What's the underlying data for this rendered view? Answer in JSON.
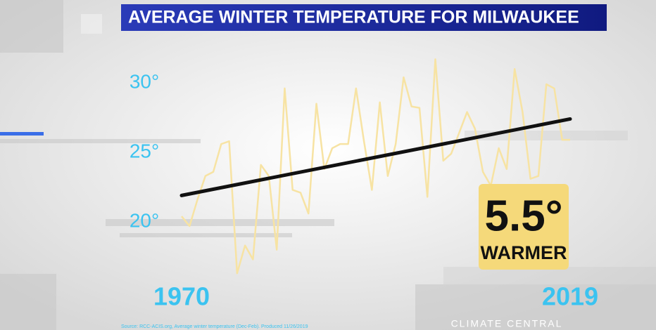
{
  "chart_data": {
    "type": "line",
    "title": "AVERAGE WINTER TEMPERATURE FOR MILWAUKEE",
    "x": [
      1970,
      1971,
      1972,
      1973,
      1974,
      1975,
      1976,
      1977,
      1978,
      1979,
      1980,
      1981,
      1982,
      1983,
      1984,
      1985,
      1986,
      1987,
      1988,
      1989,
      1990,
      1991,
      1992,
      1993,
      1994,
      1995,
      1996,
      1997,
      1998,
      1999,
      2000,
      2001,
      2002,
      2003,
      2004,
      2005,
      2006,
      2007,
      2008,
      2009,
      2010,
      2011,
      2012,
      2013,
      2014,
      2015,
      2016,
      2017,
      2018,
      2019
    ],
    "series": [
      {
        "name": "Average winter temperature",
        "color": "#f7e3a3",
        "values": [
          20.4,
          19.7,
          21.6,
          23.3,
          23.6,
          25.6,
          25.8,
          16.3,
          18.3,
          17.3,
          24.1,
          23.3,
          18.0,
          29.6,
          22.3,
          22.1,
          20.6,
          28.5,
          23.8,
          25.3,
          25.6,
          25.6,
          29.6,
          25.8,
          22.3,
          28.6,
          23.3,
          25.6,
          30.4,
          28.3,
          28.2,
          21.8,
          31.7,
          24.4,
          24.9,
          26.4,
          27.9,
          26.7,
          23.6,
          22.6,
          25.3,
          23.8,
          31.0,
          27.9,
          23.1,
          23.3,
          29.9,
          29.6,
          25.9,
          25.9
        ]
      }
    ],
    "trend": {
      "color": "#111111",
      "values": [
        21.9,
        27.4
      ]
    },
    "xlim": [
      1970,
      2019
    ],
    "xticks": [
      1970,
      2019
    ],
    "ylim": [
      15,
      33
    ],
    "yticks": [
      {
        "value": 30,
        "label": "30°"
      },
      {
        "value": 25,
        "label": "25°"
      },
      {
        "value": 20,
        "label": "20°"
      }
    ],
    "annotation": {
      "value": "5.5°",
      "text": "WARMER"
    },
    "source": "Source: RCC-ACIS.org, Average winter temperature (Dec-Feb). Produced 11/26/2019",
    "logo": "CLIMATE CENTRAL"
  }
}
